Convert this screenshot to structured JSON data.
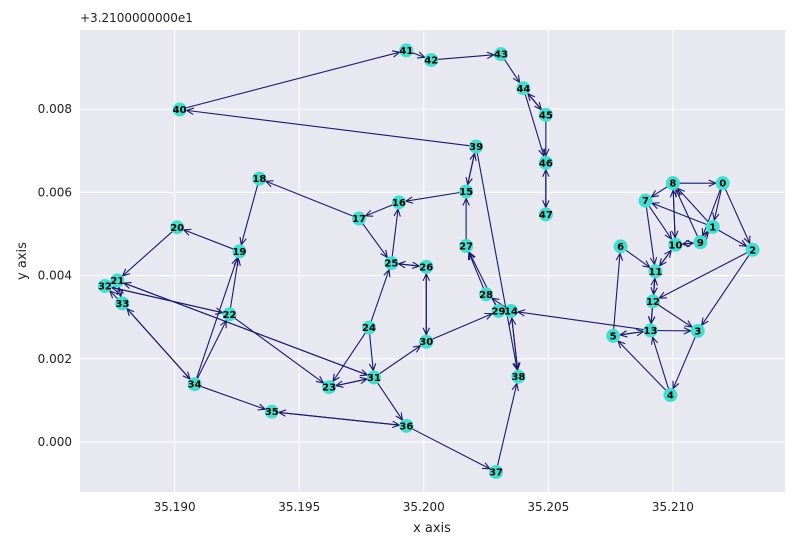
{
  "chart_data": {
    "type": "scatter",
    "title": "",
    "xlabel": "x axis",
    "ylabel": "y axis",
    "y_offset_label": "+3.2100000000e1",
    "xlim": [
      35.1862,
      35.2145
    ],
    "ylim": [
      -0.0012,
      0.0099
    ],
    "xticks": [
      35.19,
      35.195,
      35.2,
      35.205,
      35.21
    ],
    "xtick_labels": [
      "35.190",
      "35.195",
      "35.200",
      "35.205",
      "35.210"
    ],
    "yticks": [
      0.0,
      0.002,
      0.004,
      0.006,
      0.008
    ],
    "ytick_labels": [
      "0.000",
      "0.002",
      "0.004",
      "0.006",
      "0.008"
    ],
    "grid": true,
    "node_color": "#40e0d0",
    "edge_color": "#191970",
    "nodes": [
      {
        "id": "0",
        "x": 35.212,
        "y": 0.00622
      },
      {
        "id": "1",
        "x": 35.2116,
        "y": 0.00517
      },
      {
        "id": "2",
        "x": 35.2132,
        "y": 0.00462
      },
      {
        "id": "3",
        "x": 35.211,
        "y": 0.00267
      },
      {
        "id": "4",
        "x": 35.2099,
        "y": 0.00113
      },
      {
        "id": "5",
        "x": 35.2076,
        "y": 0.00255
      },
      {
        "id": "6",
        "x": 35.2079,
        "y": 0.0047
      },
      {
        "id": "7",
        "x": 35.2089,
        "y": 0.0058
      },
      {
        "id": "8",
        "x": 35.21,
        "y": 0.00622
      },
      {
        "id": "9",
        "x": 35.2111,
        "y": 0.0048
      },
      {
        "id": "10",
        "x": 35.2101,
        "y": 0.00474
      },
      {
        "id": "11",
        "x": 35.2093,
        "y": 0.0041
      },
      {
        "id": "12",
        "x": 35.2092,
        "y": 0.00338
      },
      {
        "id": "13",
        "x": 35.2091,
        "y": 0.00268
      },
      {
        "id": "14",
        "x": 35.2035,
        "y": 0.00315
      },
      {
        "id": "15",
        "x": 35.2017,
        "y": 0.00602
      },
      {
        "id": "16",
        "x": 35.199,
        "y": 0.00576
      },
      {
        "id": "17",
        "x": 35.1974,
        "y": 0.00537
      },
      {
        "id": "18",
        "x": 35.1934,
        "y": 0.00633
      },
      {
        "id": "19",
        "x": 35.1926,
        "y": 0.00458
      },
      {
        "id": "20",
        "x": 35.1901,
        "y": 0.00516
      },
      {
        "id": "21",
        "x": 35.1877,
        "y": 0.00388
      },
      {
        "id": "22",
        "x": 35.1922,
        "y": 0.00307
      },
      {
        "id": "23",
        "x": 35.1962,
        "y": 0.00132
      },
      {
        "id": "24",
        "x": 35.1978,
        "y": 0.00275
      },
      {
        "id": "25",
        "x": 35.1987,
        "y": 0.0043
      },
      {
        "id": "26",
        "x": 35.2001,
        "y": 0.00421
      },
      {
        "id": "27",
        "x": 35.2017,
        "y": 0.00471
      },
      {
        "id": "28",
        "x": 35.2025,
        "y": 0.00355
      },
      {
        "id": "29",
        "x": 35.203,
        "y": 0.00315
      },
      {
        "id": "30",
        "x": 35.2001,
        "y": 0.00241
      },
      {
        "id": "31",
        "x": 35.198,
        "y": 0.00155
      },
      {
        "id": "32",
        "x": 35.1872,
        "y": 0.00375
      },
      {
        "id": "33",
        "x": 35.1879,
        "y": 0.00333
      },
      {
        "id": "34",
        "x": 35.1908,
        "y": 0.00139
      },
      {
        "id": "35",
        "x": 35.1939,
        "y": 0.00073
      },
      {
        "id": "36",
        "x": 35.1993,
        "y": 0.00039
      },
      {
        "id": "37",
        "x": 35.2029,
        "y": -0.00072
      },
      {
        "id": "38",
        "x": 35.2038,
        "y": 0.00157
      },
      {
        "id": "39",
        "x": 35.2021,
        "y": 0.0071
      },
      {
        "id": "40",
        "x": 35.1902,
        "y": 0.00799
      },
      {
        "id": "41",
        "x": 35.1993,
        "y": 0.00941
      },
      {
        "id": "42",
        "x": 35.2003,
        "y": 0.00918
      },
      {
        "id": "43",
        "x": 35.2031,
        "y": 0.00932
      },
      {
        "id": "44",
        "x": 35.204,
        "y": 0.0085
      },
      {
        "id": "45",
        "x": 35.2049,
        "y": 0.00786
      },
      {
        "id": "46",
        "x": 35.2049,
        "y": 0.00671
      },
      {
        "id": "47",
        "x": 35.2049,
        "y": 0.00547
      }
    ],
    "edges": [
      [
        "8",
        "0"
      ],
      [
        "0",
        "2"
      ],
      [
        "0",
        "9"
      ],
      [
        "0",
        "1"
      ],
      [
        "1",
        "8"
      ],
      [
        "1",
        "7"
      ],
      [
        "1",
        "2"
      ],
      [
        "9",
        "1"
      ],
      [
        "9",
        "10"
      ],
      [
        "10",
        "9"
      ],
      [
        "9",
        "8"
      ],
      [
        "8",
        "7"
      ],
      [
        "8",
        "10"
      ],
      [
        "7",
        "10"
      ],
      [
        "7",
        "11"
      ],
      [
        "10",
        "11"
      ],
      [
        "11",
        "10"
      ],
      [
        "10",
        "8"
      ],
      [
        "11",
        "12"
      ],
      [
        "11",
        "13"
      ],
      [
        "12",
        "11"
      ],
      [
        "12",
        "13"
      ],
      [
        "12",
        "3"
      ],
      [
        "13",
        "3"
      ],
      [
        "13",
        "5"
      ],
      [
        "5",
        "13"
      ],
      [
        "5",
        "6"
      ],
      [
        "6",
        "11"
      ],
      [
        "2",
        "3"
      ],
      [
        "3",
        "4"
      ],
      [
        "4",
        "5"
      ],
      [
        "4",
        "13"
      ],
      [
        "2",
        "12"
      ],
      [
        "13",
        "14"
      ],
      [
        "14",
        "28"
      ],
      [
        "14",
        "29"
      ],
      [
        "29",
        "14"
      ],
      [
        "28",
        "27"
      ],
      [
        "29",
        "27"
      ],
      [
        "27",
        "15"
      ],
      [
        "15",
        "39"
      ],
      [
        "15",
        "16"
      ],
      [
        "16",
        "17"
      ],
      [
        "17",
        "18"
      ],
      [
        "18",
        "19"
      ],
      [
        "17",
        "25"
      ],
      [
        "25",
        "16"
      ],
      [
        "25",
        "26"
      ],
      [
        "26",
        "25"
      ],
      [
        "26",
        "30"
      ],
      [
        "30",
        "26"
      ],
      [
        "30",
        "29"
      ],
      [
        "14",
        "38"
      ],
      [
        "38",
        "14"
      ],
      [
        "39",
        "38"
      ],
      [
        "39",
        "15"
      ],
      [
        "39",
        "40"
      ],
      [
        "40",
        "41"
      ],
      [
        "41",
        "42"
      ],
      [
        "42",
        "43"
      ],
      [
        "43",
        "44"
      ],
      [
        "44",
        "45"
      ],
      [
        "45",
        "44"
      ],
      [
        "44",
        "46"
      ],
      [
        "45",
        "46"
      ],
      [
        "46",
        "47"
      ],
      [
        "47",
        "46"
      ],
      [
        "24",
        "25"
      ],
      [
        "24",
        "23"
      ],
      [
        "24",
        "31"
      ],
      [
        "23",
        "31"
      ],
      [
        "31",
        "23"
      ],
      [
        "31",
        "30"
      ],
      [
        "31",
        "36"
      ],
      [
        "36",
        "37"
      ],
      [
        "37",
        "38"
      ],
      [
        "36",
        "35"
      ],
      [
        "35",
        "36"
      ],
      [
        "34",
        "35"
      ],
      [
        "34",
        "33"
      ],
      [
        "33",
        "34"
      ],
      [
        "34",
        "19"
      ],
      [
        "34",
        "22"
      ],
      [
        "22",
        "19"
      ],
      [
        "19",
        "20"
      ],
      [
        "20",
        "21"
      ],
      [
        "21",
        "32"
      ],
      [
        "32",
        "21"
      ],
      [
        "21",
        "33"
      ],
      [
        "33",
        "32"
      ],
      [
        "21",
        "31"
      ],
      [
        "31",
        "21"
      ],
      [
        "22",
        "23"
      ],
      [
        "22",
        "32"
      ],
      [
        "32",
        "22"
      ],
      [
        "33",
        "21"
      ]
    ]
  }
}
